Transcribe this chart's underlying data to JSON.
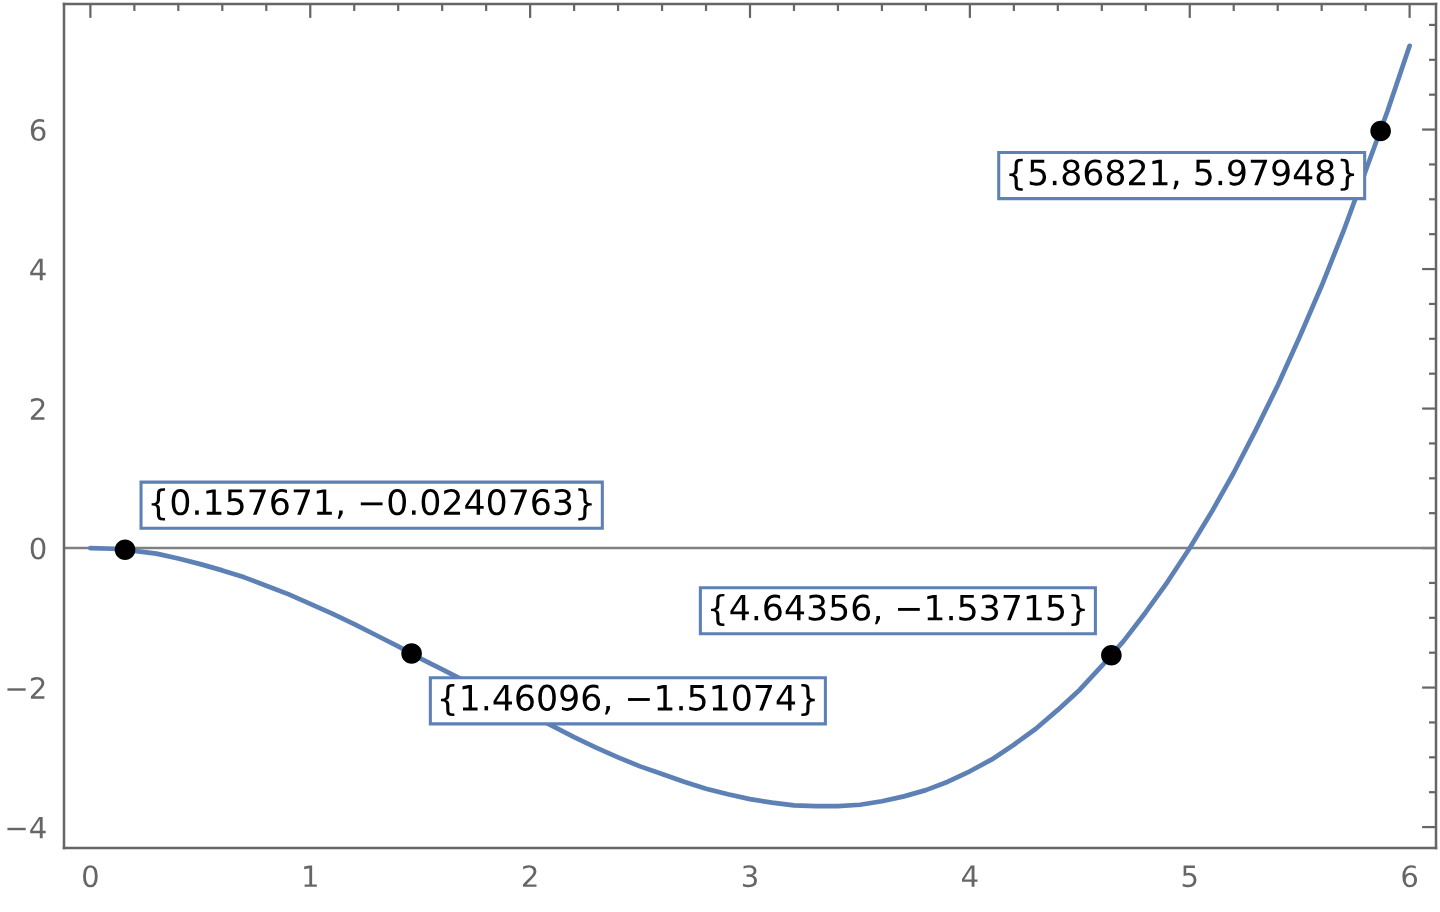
{
  "chart_data": {
    "type": "line",
    "xlim": [
      -0.12,
      6.12
    ],
    "ylim": [
      -4.3,
      7.8
    ],
    "xticks": [
      0,
      1,
      2,
      3,
      4,
      5,
      6
    ],
    "yticks": [
      -4,
      -2,
      0,
      2,
      4,
      6
    ],
    "series": [
      {
        "color": "#5e81b5",
        "x": [
          0,
          0.1,
          0.2,
          0.3,
          0.4,
          0.5,
          0.6,
          0.7,
          0.8,
          0.9,
          1.0,
          1.1,
          1.2,
          1.3,
          1.4,
          1.5,
          1.6,
          2.2,
          2.3,
          2.4,
          2.5,
          2.6,
          2.7,
          2.8,
          2.9,
          3.0,
          3.1,
          3.2,
          3.3,
          3.4,
          3.5,
          3.6,
          3.7,
          3.8,
          3.9,
          4.0,
          4.1,
          4.2,
          4.3,
          4.4,
          4.5,
          4.6,
          4.7,
          4.8,
          4.9,
          5.0,
          5.1,
          5.2,
          5.3,
          5.4,
          5.5,
          5.6,
          5.7,
          5.9,
          6.0
        ],
        "values": [
          0,
          -0.01,
          -0.04,
          -0.08,
          -0.15,
          -0.23,
          -0.32,
          -0.42,
          -0.54,
          -0.66,
          -0.8,
          -0.94,
          -1.09,
          -1.25,
          -1.41,
          -1.58,
          -1.74,
          -2.71,
          -2.86,
          -3.0,
          -3.13,
          -3.24,
          -3.35,
          -3.45,
          -3.53,
          -3.6,
          -3.65,
          -3.69,
          -3.7,
          -3.7,
          -3.68,
          -3.63,
          -3.56,
          -3.47,
          -3.35,
          -3.2,
          -3.03,
          -2.82,
          -2.59,
          -2.32,
          -2.03,
          -1.69,
          -1.33,
          -0.92,
          -0.48,
          0,
          0.52,
          1.08,
          1.69,
          2.33,
          3.03,
          3.76,
          4.55,
          6.27,
          7.2
        ]
      },
      {
        "type": "scatter",
        "color": "#000000",
        "marker": "circle",
        "x": [
          0.157671,
          1.46096,
          4.64356,
          5.86821
        ],
        "values": [
          -0.0240763,
          -1.51074,
          -1.53715,
          5.97948
        ]
      }
    ],
    "ref_lines": [
      {
        "axis": "y",
        "value": 0,
        "color": "#808080"
      }
    ],
    "annotations": [
      {
        "text": "{0.157671, −0.0240763}",
        "x": 0.157671,
        "y": -0.0240763
      },
      {
        "text": "{1.46096, −1.51074}",
        "x": 1.46096,
        "y": -1.51074
      },
      {
        "text": "{4.64356, −1.53715}",
        "x": 4.64356,
        "y": -1.53715
      },
      {
        "text": "{5.86821, 5.97948}",
        "x": 5.86821,
        "y": 5.97948
      }
    ]
  }
}
